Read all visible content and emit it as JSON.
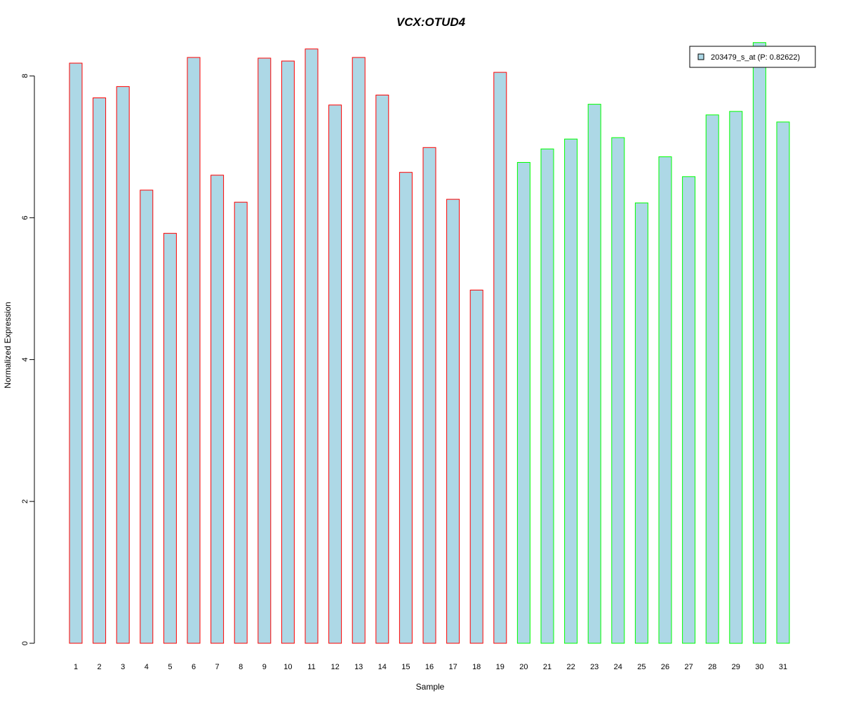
{
  "chart_data": {
    "type": "bar",
    "title": "VCX:OTUD4",
    "xlabel": "Sample",
    "ylabel": "Normalized Expression",
    "ylim": [
      0,
      8.5
    ],
    "yticks": [
      "0",
      "2",
      "4",
      "6",
      "8"
    ],
    "grid": false,
    "legend_position": "top-right",
    "categories": [
      "1",
      "2",
      "3",
      "4",
      "5",
      "6",
      "7",
      "8",
      "9",
      "10",
      "11",
      "12",
      "13",
      "14",
      "15",
      "16",
      "17",
      "18",
      "19",
      "20",
      "21",
      "22",
      "23",
      "24",
      "25",
      "26",
      "27",
      "28",
      "29",
      "30",
      "31"
    ],
    "series": [
      {
        "name": "203479_s_at (P: 0.82622)",
        "values": [
          8.18,
          7.69,
          7.85,
          6.39,
          5.78,
          8.26,
          6.6,
          6.22,
          8.25,
          8.21,
          8.38,
          7.59,
          8.26,
          7.73,
          6.64,
          6.99,
          6.26,
          4.98,
          8.05,
          6.78,
          6.97,
          7.11,
          7.6,
          7.13,
          6.21,
          6.86,
          6.58,
          7.45,
          7.5,
          8.47,
          7.35
        ]
      }
    ],
    "colors": {
      "title": "#0000cc",
      "bar_fill": "#add8e6",
      "group_1_border": "#ff0000",
      "group_2_border": "#00ff00",
      "axis": "#000000"
    },
    "group_1_count": 19
  }
}
